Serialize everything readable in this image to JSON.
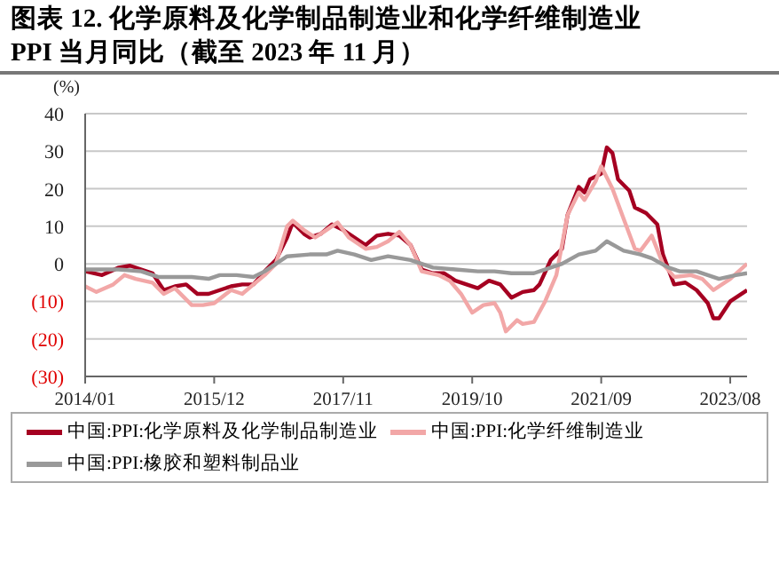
{
  "chart_data": {
    "type": "line",
    "title": "图表 12. 化学原料及化学制品制造业和化学纤维制造业",
    "subtitle": "PPI 当月同比（截至 2023 年 11 月）",
    "ylabel": "(%)",
    "xlim": [
      "2014-01",
      "2023-11"
    ],
    "xticks": [
      {
        "value": "2014-01",
        "label": "2014/01"
      },
      {
        "value": "2015-12",
        "label": "2015/12"
      },
      {
        "value": "2017-11",
        "label": "2017/11"
      },
      {
        "value": "2019-10",
        "label": "2019/10"
      },
      {
        "value": "2021-09",
        "label": "2021/09"
      },
      {
        "value": "2023-08",
        "label": "2023/08"
      }
    ],
    "ylim": [
      -30,
      40
    ],
    "yticks": [
      {
        "value": -30,
        "label": "(30)"
      },
      {
        "value": -20,
        "label": "(20)"
      },
      {
        "value": -10,
        "label": "(10)"
      },
      0,
      10,
      20,
      30,
      40
    ],
    "grid": "y",
    "legend": "bottom",
    "line_style": "solid",
    "series": [
      {
        "name": "中国:PPI:化学原料及化学制品制造业",
        "color": "#a50021",
        "x": [
          "2014-01",
          "2014-04",
          "2014-07",
          "2014-09",
          "2015-01",
          "2015-03",
          "2015-05",
          "2015-07",
          "2015-09",
          "2015-11",
          "2016-01",
          "2016-03",
          "2016-05",
          "2016-07",
          "2016-09",
          "2016-11",
          "2017-01",
          "2017-02",
          "2017-04",
          "2017-05",
          "2017-07",
          "2017-09",
          "2017-11",
          "2018-01",
          "2018-03",
          "2018-05",
          "2018-07",
          "2018-09",
          "2018-11",
          "2019-01",
          "2019-03",
          "2019-05",
          "2019-07",
          "2019-09",
          "2019-11",
          "2020-01",
          "2020-03",
          "2020-05",
          "2020-07",
          "2020-09",
          "2020-10",
          "2020-12",
          "2021-02",
          "2021-03",
          "2021-05",
          "2021-06",
          "2021-07",
          "2021-09",
          "2021-10",
          "2021-11",
          "2021-12",
          "2022-02",
          "2022-03",
          "2022-05",
          "2022-07",
          "2022-08",
          "2022-10",
          "2022-12",
          "2023-02",
          "2023-04",
          "2023-05",
          "2023-06",
          "2023-08",
          "2023-11"
        ],
        "values": [
          -2,
          -3,
          -1,
          -0.5,
          -2.5,
          -7,
          -6,
          -5.5,
          -8,
          -8,
          -7,
          -6,
          -5.5,
          -5.5,
          -2,
          1,
          7,
          11,
          8,
          7,
          8,
          10.5,
          9,
          7,
          5,
          7.5,
          8,
          7.5,
          5,
          -1.5,
          -2.5,
          -2.5,
          -4.5,
          -5.5,
          -6.5,
          -4.5,
          -5.5,
          -9,
          -7.5,
          -7,
          -5.5,
          1,
          4,
          13,
          20.5,
          19,
          22.5,
          24,
          31,
          29.5,
          22.5,
          19.5,
          15,
          13.5,
          10.5,
          2.5,
          -5.5,
          -5,
          -7,
          -10.5,
          -14.5,
          -14.5,
          -10,
          -7
        ]
      },
      {
        "name": "中国:PPI:化学纤维制造业",
        "color": "#f2a7a7",
        "x": [
          "2014-01",
          "2014-03",
          "2014-06",
          "2014-08",
          "2014-10",
          "2015-01",
          "2015-03",
          "2015-05",
          "2015-08",
          "2015-10",
          "2015-12",
          "2016-03",
          "2016-05",
          "2016-07",
          "2016-09",
          "2016-11",
          "2017-01",
          "2017-02",
          "2017-04",
          "2017-06",
          "2017-08",
          "2017-10",
          "2017-12",
          "2018-03",
          "2018-05",
          "2018-07",
          "2018-09",
          "2018-11",
          "2019-01",
          "2019-04",
          "2019-06",
          "2019-08",
          "2019-10",
          "2019-12",
          "2020-02",
          "2020-03",
          "2020-04",
          "2020-06",
          "2020-07",
          "2020-09",
          "2020-11",
          "2021-01",
          "2021-03",
          "2021-05",
          "2021-06",
          "2021-08",
          "2021-09",
          "2021-11",
          "2022-01",
          "2022-03",
          "2022-04",
          "2022-06",
          "2022-08",
          "2022-10",
          "2023-01",
          "2023-03",
          "2023-05",
          "2023-08",
          "2023-11"
        ],
        "values": [
          -6,
          -7.5,
          -5.5,
          -3,
          -4,
          -5,
          -8,
          -6.5,
          -11,
          -11,
          -10.5,
          -7,
          -8,
          -5.5,
          -3,
          0,
          10,
          11.5,
          9,
          7,
          9,
          11,
          7,
          4,
          4.5,
          6,
          8.5,
          5,
          -2,
          -3,
          -4.5,
          -8,
          -13,
          -11,
          -10.5,
          -13,
          -18,
          -15,
          -16,
          -15.5,
          -10,
          -3,
          13,
          19,
          17,
          22,
          26,
          20,
          12,
          4,
          3.5,
          7.5,
          0,
          -3.5,
          -3,
          -4,
          -7,
          -4,
          0
        ]
      },
      {
        "name": "中国:PPI:橡胶和塑料制品业",
        "color": "#999999",
        "x": [
          "2014-01",
          "2014-07",
          "2014-11",
          "2015-02",
          "2015-05",
          "2015-08",
          "2015-11",
          "2016-01",
          "2016-04",
          "2016-07",
          "2016-09",
          "2016-11",
          "2017-01",
          "2017-05",
          "2017-08",
          "2017-10",
          "2018-01",
          "2018-04",
          "2018-07",
          "2018-11",
          "2019-03",
          "2019-07",
          "2019-11",
          "2020-02",
          "2020-05",
          "2020-09",
          "2020-12",
          "2021-02",
          "2021-05",
          "2021-08",
          "2021-10",
          "2022-01",
          "2022-04",
          "2022-06",
          "2022-09",
          "2022-11",
          "2023-02",
          "2023-04",
          "2023-06",
          "2023-09",
          "2023-11"
        ],
        "values": [
          -1.5,
          -1.5,
          -2,
          -3.5,
          -3.5,
          -3.5,
          -4,
          -3,
          -3,
          -3.5,
          -2,
          0,
          2,
          2.5,
          2.5,
          3.5,
          2.5,
          1,
          2,
          1,
          -1,
          -1.5,
          -2,
          -2,
          -2.5,
          -2.5,
          -1,
          0,
          2.5,
          3.5,
          6,
          3.5,
          2.5,
          1.5,
          -1,
          -2,
          -2,
          -3,
          -4,
          -3,
          -2.5
        ]
      }
    ]
  }
}
